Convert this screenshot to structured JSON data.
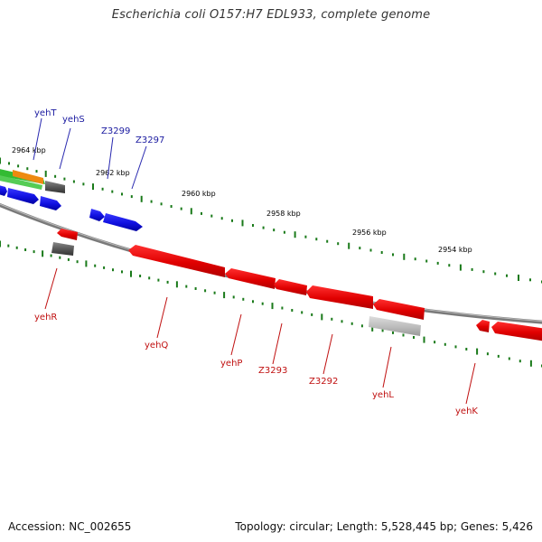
{
  "title": "Escherichia coli O157:H7 EDL933, complete genome",
  "footer": {
    "accession": "Accession: NC_002655",
    "summary": "Topology: circular; Length: 5,528,445 bp; Genes: 5,426"
  },
  "scale_labels": [
    "2964 kbp",
    "2962 kbp",
    "2960 kbp",
    "2958 kbp",
    "2956 kbp",
    "2954 kbp"
  ],
  "gene_labels": {
    "top": [
      "yehT",
      "yehS",
      "Z3299",
      "Z3297"
    ],
    "bottom": [
      "yehR",
      "yehQ",
      "yehP",
      "Z3293",
      "Z3292",
      "yehL",
      "yehK"
    ]
  },
  "colors": {
    "forward_gene": "#1010e0",
    "reverse_gene": "#e00000",
    "pseudo_gene": "#555555",
    "tick": "#1a7a1a",
    "backbone": "#888888",
    "top_label": "#1a1aa0",
    "bottom_label": "#c01010",
    "green_feature": "#33bb33",
    "orange_feature": "#ee8a10"
  }
}
